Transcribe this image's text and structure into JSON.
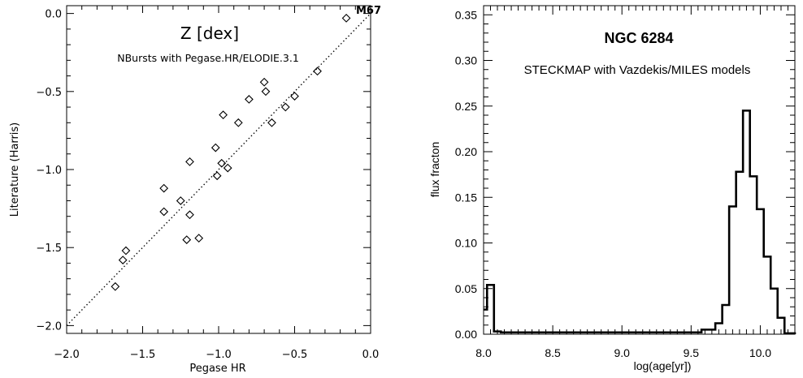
{
  "chart_data": [
    {
      "type": "scatter",
      "title": "Z [dex]",
      "subtitle": "NBursts with Pegase.HR/ELODIE.3.1",
      "xlabel": "Pegase HR",
      "ylabel": "Literature (Harris)",
      "xlim": [
        -2.0,
        0.0
      ],
      "ylim": [
        -2.05,
        0.05
      ],
      "xticks": [
        -2.0,
        -1.5,
        -1.0,
        -0.5,
        0.0
      ],
      "xtick_labels": [
        "−2.0",
        "−1.5",
        "−1.0",
        "−0.5",
        "0.0"
      ],
      "yticks": [
        -2.0,
        -1.5,
        -1.0,
        -0.5,
        0.0
      ],
      "ytick_labels": [
        "−2.0",
        "−1.5",
        "−1.0",
        "−0.5",
        "0.0"
      ],
      "reference_line": "one-to-one, dotted",
      "marker": "diamond",
      "annotation": {
        "text": "M67",
        "x": -0.15,
        "y": 0.0
      },
      "points": [
        {
          "x": -0.16,
          "y": -0.03
        },
        {
          "x": -0.35,
          "y": -0.37
        },
        {
          "x": -0.5,
          "y": -0.53
        },
        {
          "x": -0.56,
          "y": -0.6
        },
        {
          "x": -0.65,
          "y": -0.7
        },
        {
          "x": -0.7,
          "y": -0.44
        },
        {
          "x": -0.69,
          "y": -0.5
        },
        {
          "x": -0.8,
          "y": -0.55
        },
        {
          "x": -0.87,
          "y": -0.7
        },
        {
          "x": -0.97,
          "y": -0.65
        },
        {
          "x": -1.02,
          "y": -0.86
        },
        {
          "x": -0.98,
          "y": -0.96
        },
        {
          "x": -0.94,
          "y": -0.99
        },
        {
          "x": -1.01,
          "y": -1.04
        },
        {
          "x": -1.19,
          "y": -0.95
        },
        {
          "x": -1.36,
          "y": -1.12
        },
        {
          "x": -1.25,
          "y": -1.2
        },
        {
          "x": -1.36,
          "y": -1.27
        },
        {
          "x": -1.19,
          "y": -1.29
        },
        {
          "x": -1.21,
          "y": -1.45
        },
        {
          "x": -1.13,
          "y": -1.44
        },
        {
          "x": -1.61,
          "y": -1.52
        },
        {
          "x": -1.63,
          "y": -1.58
        },
        {
          "x": -1.68,
          "y": -1.75
        }
      ]
    },
    {
      "type": "histogram",
      "title": "NGC 6284",
      "subtitle": "STECKMAP with Vazdekis/MILES models",
      "xlabel": "log(age[yr])",
      "ylabel": "flux fracton",
      "xlim": [
        8.0,
        10.25
      ],
      "ylim": [
        0.0,
        0.36
      ],
      "xticks": [
        8.0,
        8.5,
        9.0,
        9.5,
        10.0
      ],
      "xtick_labels": [
        "8.0",
        "8.5",
        "9.0",
        "9.5",
        "10.0"
      ],
      "yticks": [
        0.0,
        0.05,
        0.1,
        0.15,
        0.2,
        0.25,
        0.3,
        0.35
      ],
      "ytick_labels": [
        "0.00",
        "0.05",
        "0.10",
        "0.15",
        "0.20",
        "0.25",
        "0.30",
        "0.35"
      ],
      "bin_edges": [
        8.0,
        8.025,
        8.075,
        8.125,
        9.575,
        9.675,
        9.725,
        9.775,
        9.825,
        9.875,
        9.925,
        9.975,
        10.025,
        10.075,
        10.125,
        10.175,
        10.25
      ],
      "values": [
        0.027,
        0.054,
        0.003,
        0.002,
        0.005,
        0.012,
        0.032,
        0.14,
        0.178,
        0.245,
        0.173,
        0.137,
        0.085,
        0.05,
        0.018,
        0.001
      ]
    }
  ]
}
